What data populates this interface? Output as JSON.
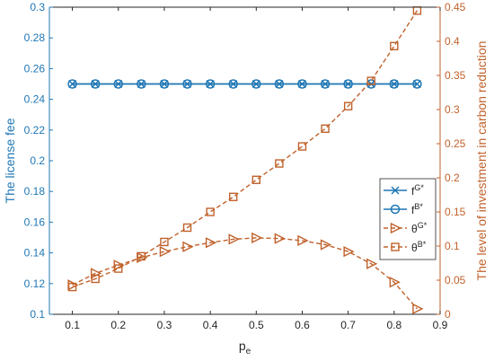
{
  "chart_data": {
    "type": "line",
    "x": [
      0.1,
      0.15,
      0.2,
      0.25,
      0.3,
      0.35,
      0.4,
      0.45,
      0.5,
      0.55,
      0.6,
      0.65,
      0.7,
      0.75,
      0.8,
      0.85
    ],
    "xlabel": "p",
    "xlabel_sub": "e",
    "xlim": [
      0.05,
      0.9
    ],
    "xticks": [
      0.1,
      0.2,
      0.3,
      0.4,
      0.5,
      0.6,
      0.7,
      0.8,
      0.9
    ],
    "left_axis": {
      "label": "The license fee",
      "ylim": [
        0.1,
        0.3
      ],
      "ticks": [
        0.1,
        0.12,
        0.14,
        0.16,
        0.18,
        0.2,
        0.22,
        0.24,
        0.26,
        0.28,
        0.3
      ],
      "color": "#1f77b4"
    },
    "right_axis": {
      "label": "The level of investment in carbon reduction",
      "ylim": [
        0,
        0.45
      ],
      "ticks": [
        0,
        0.05,
        0.1,
        0.15,
        0.2,
        0.25,
        0.3,
        0.35,
        0.4,
        0.45
      ],
      "color": "#c0622b"
    },
    "series": [
      {
        "name": "f^{G*}",
        "label_base": "f",
        "label_sup": "G*",
        "axis": "left",
        "marker": "x",
        "line": "solid",
        "color": "#1f77b4",
        "values": [
          0.25,
          0.25,
          0.25,
          0.25,
          0.25,
          0.25,
          0.25,
          0.25,
          0.25,
          0.25,
          0.25,
          0.25,
          0.25,
          0.25,
          0.25,
          0.25
        ]
      },
      {
        "name": "f^{B*}",
        "label_base": "f",
        "label_sup": "B*",
        "axis": "left",
        "marker": "circle",
        "line": "solid",
        "color": "#1f77b4",
        "values": [
          0.25,
          0.25,
          0.25,
          0.25,
          0.25,
          0.25,
          0.25,
          0.25,
          0.25,
          0.25,
          0.25,
          0.25,
          0.25,
          0.25,
          0.25,
          0.25
        ]
      },
      {
        "name": "θ^{G*}",
        "label_base": "θ",
        "label_sup": "G*",
        "axis": "right",
        "marker": "triangle-right",
        "line": "dashed",
        "color": "#c0622b",
        "values": [
          0.043,
          0.06,
          0.072,
          0.083,
          0.092,
          0.099,
          0.105,
          0.11,
          0.112,
          0.111,
          0.108,
          0.102,
          0.092,
          0.074,
          0.047,
          0.008
        ]
      },
      {
        "name": "θ^{B*}",
        "label_base": "θ",
        "label_sup": "B*",
        "axis": "right",
        "marker": "square",
        "line": "dashed",
        "color": "#c0622b",
        "values": [
          0.04,
          0.052,
          0.067,
          0.085,
          0.106,
          0.127,
          0.15,
          0.172,
          0.197,
          0.221,
          0.246,
          0.272,
          0.305,
          0.342,
          0.393,
          0.445
        ]
      }
    ],
    "legend": "middle-right",
    "grid": false
  }
}
